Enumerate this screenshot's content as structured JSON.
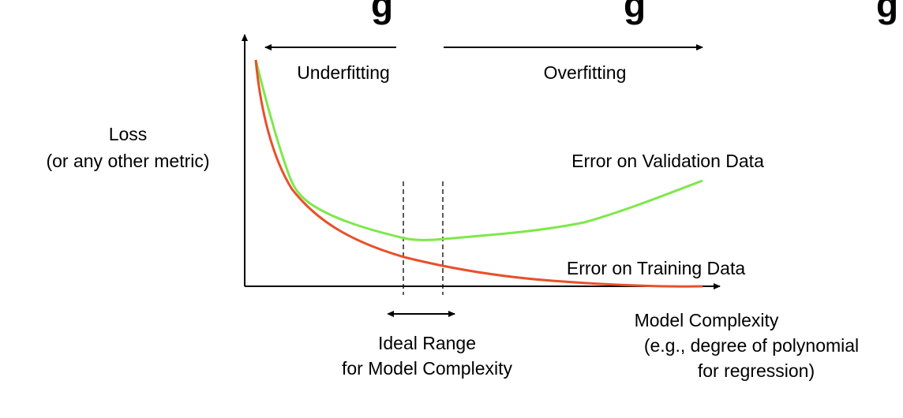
{
  "title_fragment": "...g ... g ... g",
  "y_axis_label": {
    "line1": "Loss",
    "line2": "(or any other metric)"
  },
  "x_axis_label": {
    "line1": "Model Complexity",
    "line2": "(e.g., degree of polynomial",
    "line3": "for regression)"
  },
  "regions": {
    "underfitting": "Underfitting",
    "overfitting": "Overfitting"
  },
  "curves": {
    "validation": {
      "label": "Error on Validation Data",
      "color": "#7ee84a"
    },
    "training": {
      "label": "Error on Training Data",
      "color": "#e8502a"
    }
  },
  "ideal_range": {
    "line1": "Ideal Range",
    "line2": "for Model Complexity"
  },
  "colors": {
    "axis": "#000000",
    "text": "#000000"
  }
}
